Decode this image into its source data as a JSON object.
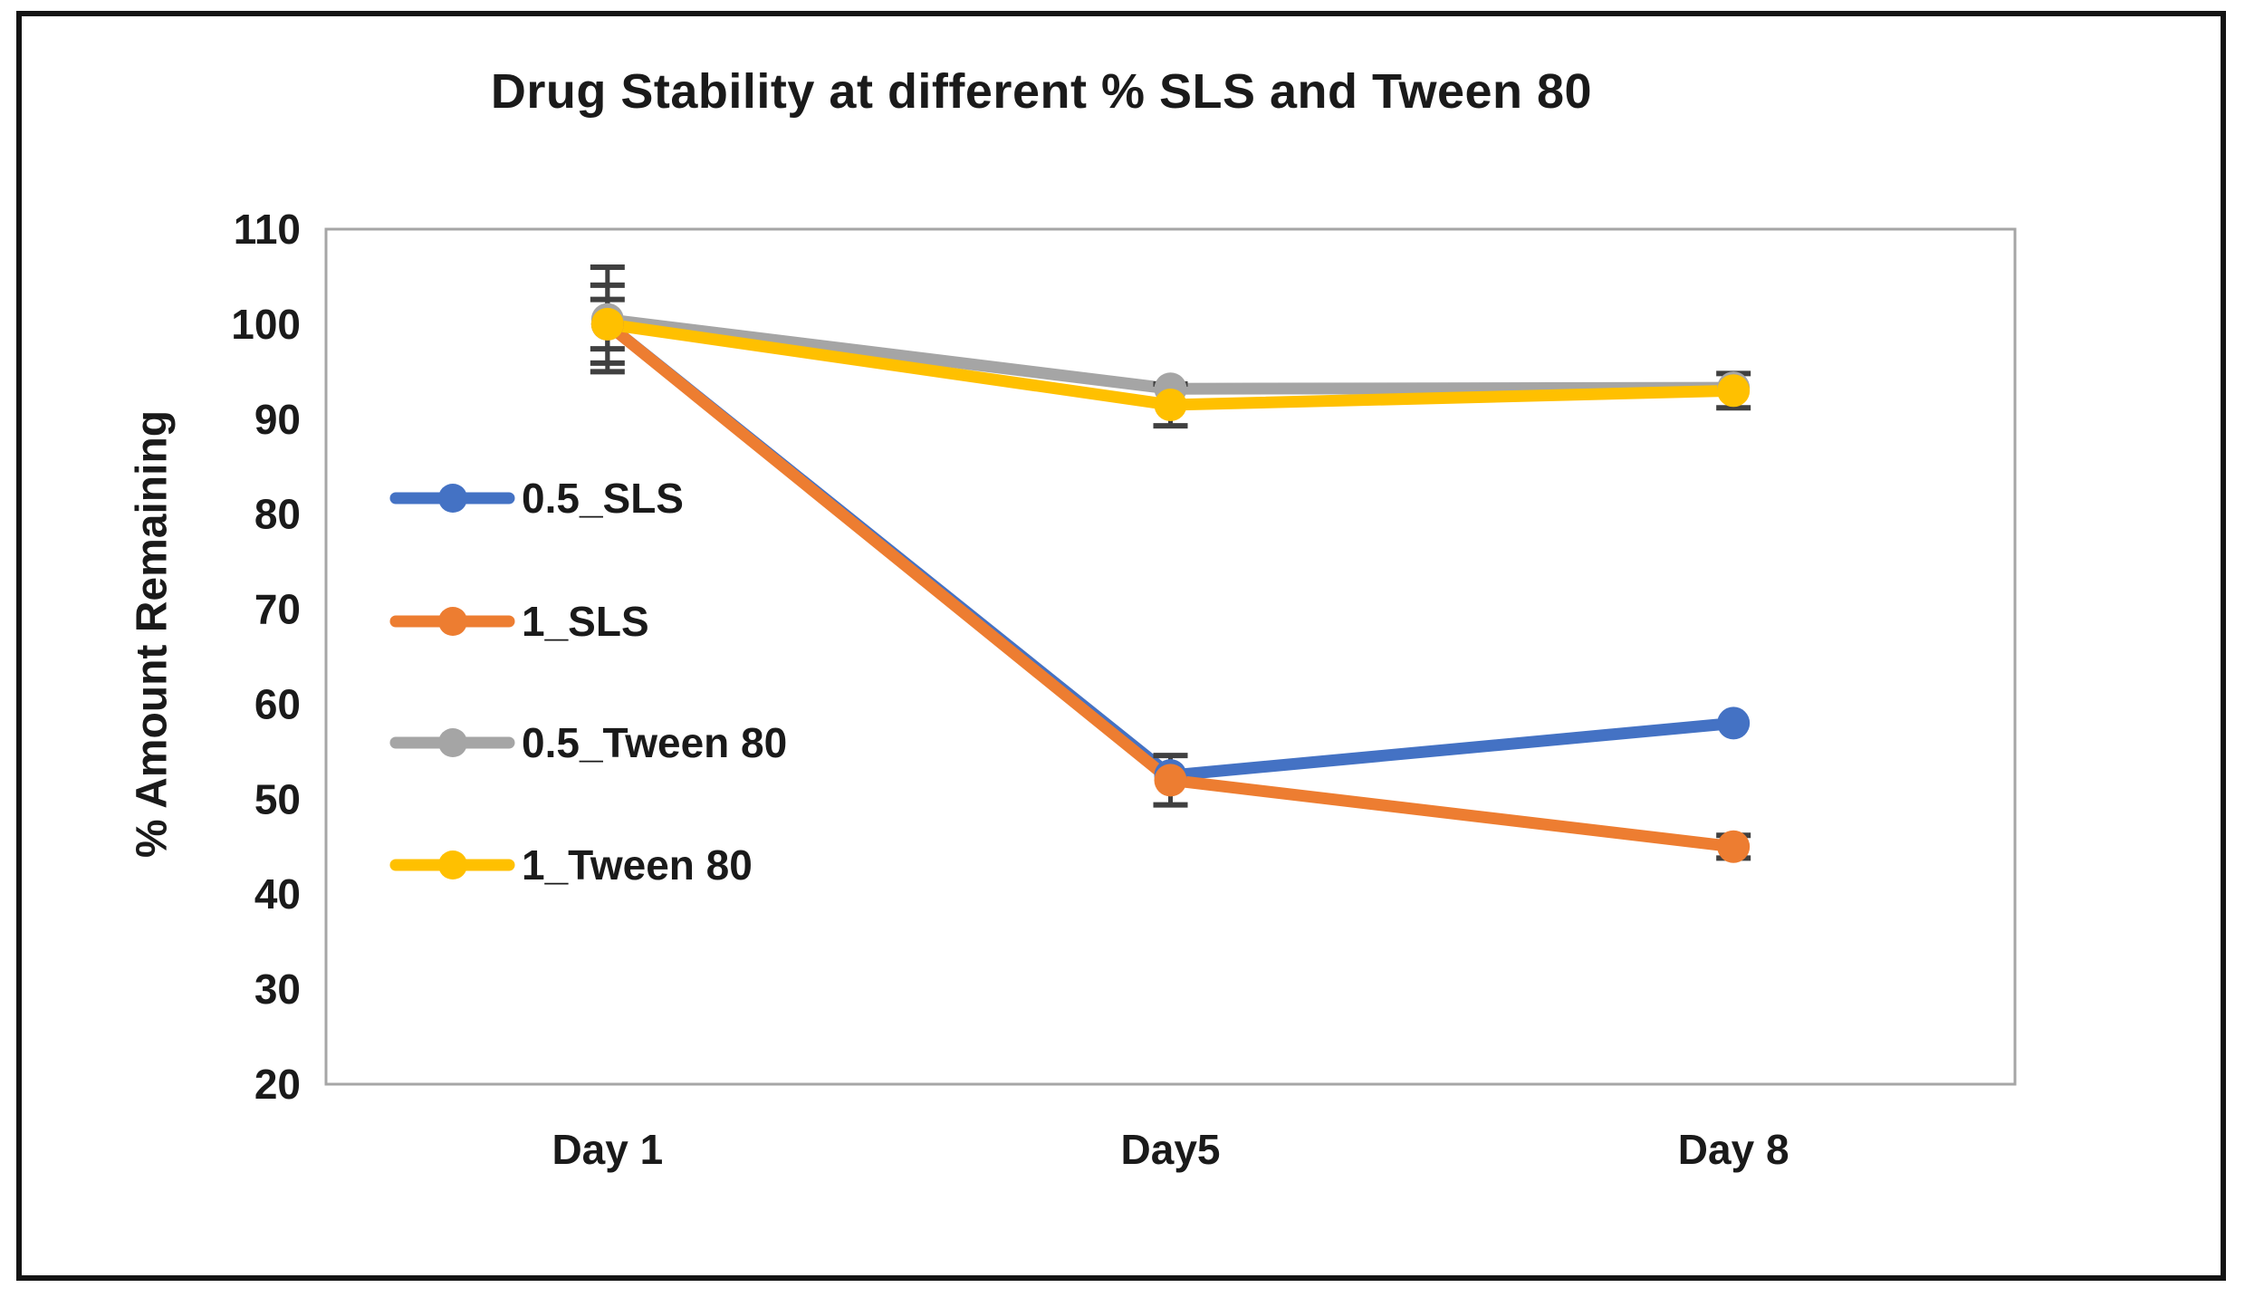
{
  "chart_data": {
    "type": "line",
    "title": "Drug Stability at different % SLS and Tween 80",
    "ylabel": "% Amount Remaining",
    "xlabel": "",
    "categories": [
      "Day 1",
      "Day5",
      "Day 8"
    ],
    "series": [
      {
        "name": "0.5_SLS",
        "color": "#4472C4",
        "values": [
          100,
          52.5,
          58
        ],
        "err": [
          2.6,
          0,
          0
        ]
      },
      {
        "name": "1_SLS",
        "color": "#ED7D31",
        "values": [
          100,
          52,
          45
        ],
        "err": [
          0,
          2.6,
          1.2
        ]
      },
      {
        "name": "0.5_Tween 80",
        "color": "#A5A5A5",
        "values": [
          100.5,
          93.2,
          93.3
        ],
        "err": [
          5.5,
          0,
          0
        ]
      },
      {
        "name": "1_Tween 80",
        "color": "#FFC000",
        "values": [
          100,
          91.5,
          93
        ],
        "err": [
          4.1,
          2.2,
          1.8
        ]
      }
    ],
    "ylim": [
      20,
      110
    ],
    "ytick_step": 10,
    "grid": false,
    "legend_position": "inside-left",
    "error_bar_color": "#404040",
    "plot_border_color": "#A6A6A6",
    "frame_border_color": "#141414"
  }
}
